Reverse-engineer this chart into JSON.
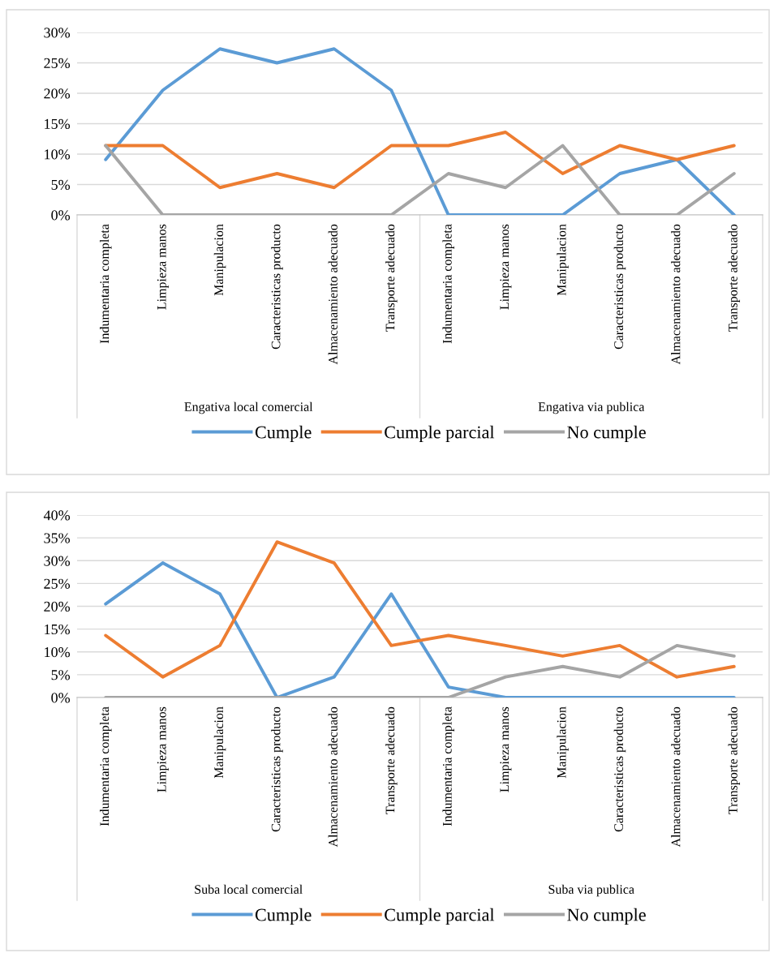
{
  "chart_data": [
    {
      "type": "line",
      "categories": [
        "Indumentaria completa",
        "Limpieza manos",
        "Manipulacion",
        "Caracteristicas producto",
        "Almacenamiento adecuado",
        "Transporte adecuado",
        "Indumentaria completa",
        "Limpieza manos",
        "Manipulacion",
        "Caracteristicas producto",
        "Almacenamiento adecuado",
        "Transporte adecuado"
      ],
      "annotations": [
        "Engativa local comercial",
        "Engativa via publica"
      ],
      "series": [
        {
          "name": "Cumple",
          "color": "#5b9bd5",
          "values": [
            9.1,
            20.5,
            27.3,
            25.0,
            27.3,
            20.5,
            0,
            0,
            0,
            6.8,
            9.1,
            0
          ]
        },
        {
          "name": "Cumple parcial",
          "color": "#ed7d31",
          "values": [
            11.4,
            11.4,
            4.5,
            6.8,
            4.5,
            11.4,
            11.4,
            13.6,
            6.8,
            11.4,
            9.1,
            11.4
          ]
        },
        {
          "name": "No cumple",
          "color": "#a5a5a5",
          "values": [
            11.4,
            0,
            0,
            0,
            0,
            0,
            6.8,
            4.5,
            11.4,
            0,
            0,
            6.8
          ]
        }
      ],
      "ylim": [
        0,
        30
      ],
      "yticks": [
        {
          "value": 0,
          "label": "0%"
        },
        {
          "value": 5,
          "label": "5%"
        },
        {
          "value": 10,
          "label": "10%"
        },
        {
          "value": 15,
          "label": "15%"
        },
        {
          "value": 20,
          "label": "20%"
        },
        {
          "value": 25,
          "label": "25%"
        },
        {
          "value": 30,
          "label": "30%"
        }
      ],
      "grid": "y",
      "legend": "bottom",
      "marker": "none",
      "line_style": "solid"
    },
    {
      "type": "line",
      "categories": [
        "Indumentaria completa",
        "Limpieza manos",
        "Manipulacion",
        "Caracteristicas producto",
        "Almacenamiento adecuado",
        "Transporte adecuado",
        "Indumentaria completa",
        "Limpieza manos",
        "Manipulacion",
        "Caracteristicas producto",
        "Almacenamiento adecuado",
        "Transporte adecuado"
      ],
      "annotations": [
        "Suba local comercial",
        "Suba via publica"
      ],
      "series": [
        {
          "name": "Cumple",
          "color": "#5b9bd5",
          "values": [
            20.5,
            29.5,
            22.7,
            0,
            4.5,
            22.7,
            2.3,
            0,
            0,
            0,
            0,
            0
          ]
        },
        {
          "name": "Cumple parcial",
          "color": "#ed7d31",
          "values": [
            13.6,
            4.5,
            11.4,
            34.1,
            29.5,
            11.4,
            13.6,
            11.4,
            9.1,
            11.4,
            4.5,
            6.8
          ]
        },
        {
          "name": "No cumple",
          "color": "#a5a5a5",
          "values": [
            0,
            0,
            0,
            0,
            0,
            0,
            0,
            4.5,
            6.8,
            4.5,
            11.4,
            9.1
          ]
        }
      ],
      "ylim": [
        0,
        40
      ],
      "yticks": [
        {
          "value": 0,
          "label": "0%"
        },
        {
          "value": 5,
          "label": "5%"
        },
        {
          "value": 10,
          "label": "10%"
        },
        {
          "value": 15,
          "label": "15%"
        },
        {
          "value": 20,
          "label": "20%"
        },
        {
          "value": 25,
          "label": "25%"
        },
        {
          "value": 30,
          "label": "30%"
        },
        {
          "value": 35,
          "label": "35%"
        },
        {
          "value": 40,
          "label": "40%"
        }
      ],
      "grid": "y",
      "legend": "bottom",
      "marker": "none",
      "line_style": "solid"
    }
  ]
}
